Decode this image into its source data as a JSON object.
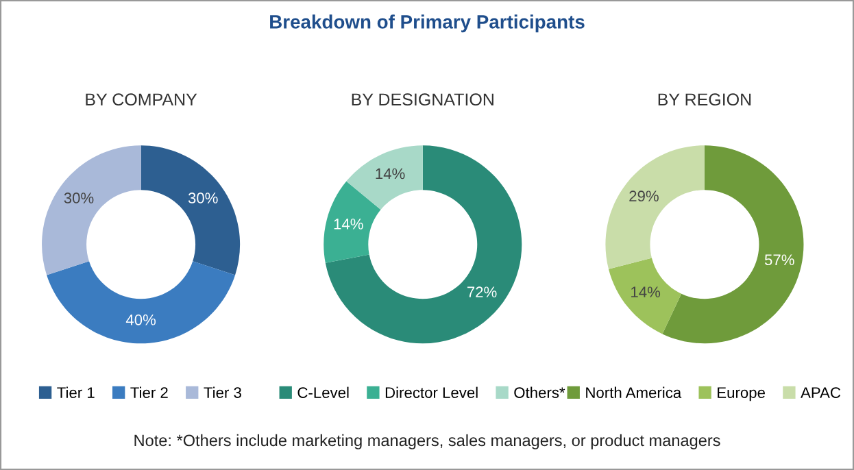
{
  "chart_data": [
    {
      "type": "donut",
      "title": "BY COMPANY",
      "annotations": [
        "Breakdown of Primary Participants"
      ],
      "categories": [
        "Tier 1",
        "Tier 2",
        "Tier 3"
      ],
      "values": [
        30,
        40,
        30
      ],
      "colors": [
        "#2d5f91",
        "#3b7cc0",
        "#a9b9d9"
      ],
      "value_labels": [
        "30%",
        "40%",
        "30%"
      ],
      "legend": "bottom"
    },
    {
      "type": "donut",
      "title": "BY DESIGNATION",
      "categories": [
        "C-Level",
        "Director Level",
        "Others*"
      ],
      "values": [
        72,
        14,
        14
      ],
      "colors": [
        "#2a8b78",
        "#3bb093",
        "#a8d9c8"
      ],
      "value_labels": [
        "72%",
        "14%",
        "14%"
      ],
      "legend": "bottom"
    },
    {
      "type": "donut",
      "title": "BY REGION",
      "annotations": [
        "Note: *Others include marketing managers, sales managers, or product managers"
      ],
      "categories": [
        "North America",
        "Europe",
        "APAC"
      ],
      "values": [
        57,
        14,
        29
      ],
      "colors": [
        "#6f9b3b",
        "#9dc25b",
        "#c9dda9"
      ],
      "value_labels": [
        "57%",
        "14%",
        "29%"
      ],
      "legend": "bottom"
    }
  ]
}
